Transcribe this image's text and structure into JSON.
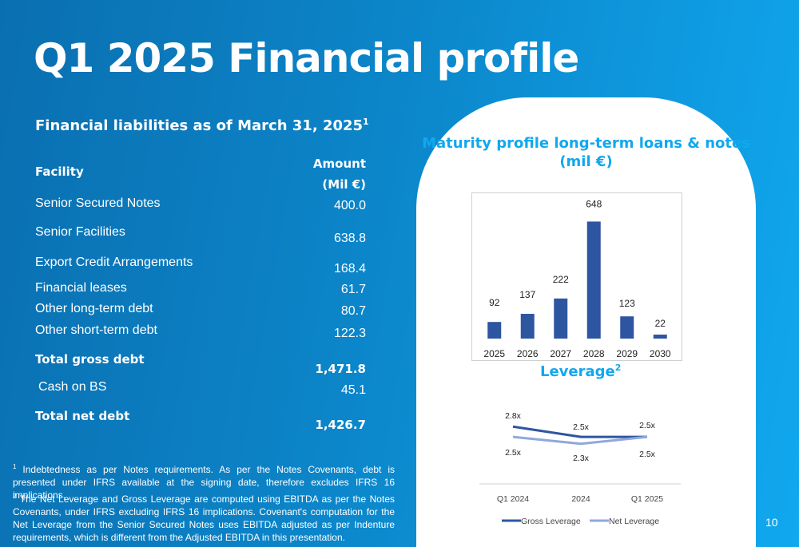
{
  "title": "Q1 2025 Financial profile",
  "subtitle": "Financial liabilities as of March 31, 2025",
  "subtitle_sup": "1",
  "table": {
    "header_facility": "Facility",
    "header_amount_1": "Amount",
    "header_amount_2": "(Mil €)",
    "rows": [
      {
        "label": "Senior Secured Notes",
        "value": "400.0"
      },
      {
        "label": "Senior Facilities",
        "value": "638.8"
      },
      {
        "label": "Export Credit Arrangements",
        "value": "168.4"
      },
      {
        "label": "Financial leases",
        "value": "61.7"
      },
      {
        "label": "Other long-term debt",
        "value": "80.7"
      },
      {
        "label": "Other short-term debt",
        "value": "122.3"
      },
      {
        "label": "Total gross debt",
        "value": "1,471.8"
      },
      {
        "label": "Cash on BS",
        "value": "45.1"
      },
      {
        "label": "Total net debt",
        "value": "1,426.7"
      }
    ]
  },
  "footnotes": {
    "fn1_mark": "1",
    "fn1": "Indebtedness as per Notes requirements. As per the Notes Covenants, debt is presented under IFRS available at the signing date, therefore excludes IFRS 16 implications.",
    "fn2_mark": "2",
    "fn2": "The Net Leverage and Gross Leverage are computed using EBITDA as per the Notes Covenants, under IFRS excluding IFRS 16 implications. Covenant's computation for the Net Leverage from the Senior Secured Notes uses EBITDA adjusted as per Indenture requirements, which is different from the Adjusted EBITDA in this presentation."
  },
  "page_number": "10",
  "colors": {
    "accent": "#10a8ef",
    "bar": "#2e55a0",
    "net_line": "#8fa8dd"
  },
  "chart_data": [
    {
      "type": "bar",
      "title": "Maturity profile long-term loans & notes (mil €)",
      "categories": [
        "2025",
        "2026",
        "2027",
        "2028",
        "2029",
        "2030"
      ],
      "values": [
        92,
        137,
        222,
        648,
        123,
        22
      ],
      "value_labels": [
        "92",
        "137",
        "222",
        "648",
        "123",
        "22"
      ],
      "ylim": [
        0,
        650
      ],
      "grid": false
    },
    {
      "type": "line",
      "title": "Leverage",
      "title_sup": "2",
      "categories": [
        "Q1 2024",
        "2024",
        "Q1 2025"
      ],
      "series": [
        {
          "name": "Gross Leverage",
          "values": [
            2.8,
            2.5,
            2.5
          ],
          "labels": [
            "2.8x",
            "2.5x",
            "2.5x"
          ]
        },
        {
          "name": "Net Leverage",
          "values": [
            2.5,
            2.3,
            2.5
          ],
          "labels": [
            "2.5x",
            "2.3x",
            "2.5x"
          ]
        }
      ],
      "legend": "bottom"
    }
  ]
}
